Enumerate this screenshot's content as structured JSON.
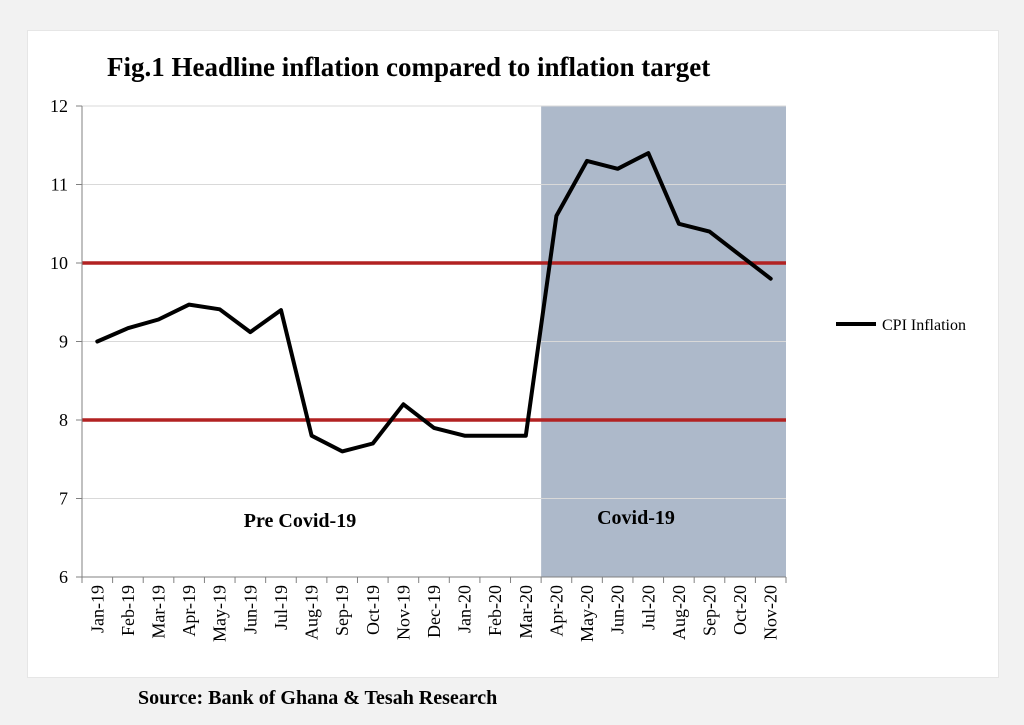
{
  "chart_data": {
    "type": "line",
    "title": "Fig.1 Headline inflation compared to inflation target",
    "xlabel": "",
    "ylabel": "",
    "ylim": [
      6,
      12
    ],
    "yticks": [
      "6",
      "7",
      "8",
      "9",
      "10",
      "11",
      "12"
    ],
    "grid": true,
    "legend_position": "right",
    "categories": [
      "Jan-19",
      "Feb-19",
      "Mar-19",
      "Apr-19",
      "May-19",
      "Jun-19",
      "Jul-19",
      "Aug-19",
      "Sep-19",
      "Oct-19",
      "Nov-19",
      "Dec-19",
      "Jan-20",
      "Feb-20",
      "Mar-20",
      "Apr-20",
      "May-20",
      "Jun-20",
      "Jul-20",
      "Aug-20",
      "Sep-20",
      "Oct-20",
      "Nov-20"
    ],
    "series": [
      {
        "name": "CPI Inflation",
        "color": "#000000",
        "values": [
          9.0,
          9.17,
          9.28,
          9.47,
          9.41,
          9.12,
          9.4,
          7.8,
          7.6,
          7.7,
          8.2,
          7.9,
          7.8,
          7.8,
          7.8,
          10.6,
          11.3,
          11.2,
          11.4,
          10.5,
          10.4,
          10.1,
          9.8
        ]
      }
    ],
    "reference_lines": [
      {
        "value": 10,
        "color": "#b22222"
      },
      {
        "value": 8,
        "color": "#b22222"
      }
    ],
    "shaded_region": {
      "from": "Apr-20",
      "to": "Nov-20",
      "color": "#adb9ca",
      "label": "Covid-19"
    },
    "annotations": [
      "Pre Covid-19",
      "Covid-19"
    ]
  },
  "source": "Source: Bank of Ghana & Tesah Research"
}
